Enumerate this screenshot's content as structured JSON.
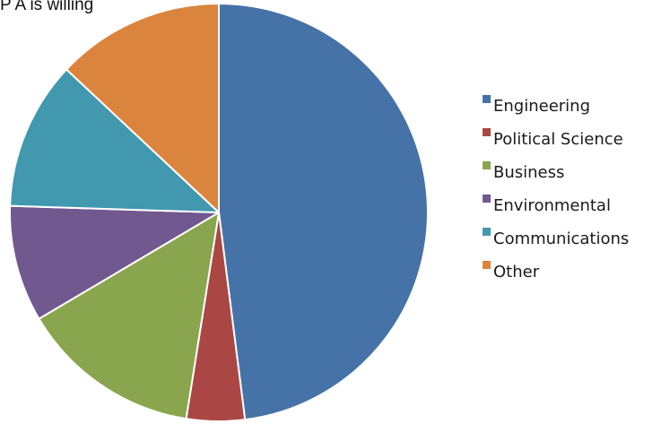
{
  "header": {
    "title_fragment": "P A is willing"
  },
  "chart_data": {
    "type": "pie",
    "title": "",
    "categories": [
      "Engineering",
      "Political Science",
      "Business",
      "Environmental",
      "Communications",
      "Other"
    ],
    "values": [
      48,
      4.5,
      14,
      9,
      11.5,
      13
    ],
    "colors": [
      "#4572a7",
      "#aa4643",
      "#89a54e",
      "#71588f",
      "#4198af",
      "#db843d"
    ],
    "legend": {
      "position": "right",
      "entries": [
        "Engineering",
        "Political Science",
        "Business",
        "Environmental",
        "Communications",
        "Other"
      ]
    },
    "start_angle": "12 o'clock",
    "direction": "clockwise"
  }
}
